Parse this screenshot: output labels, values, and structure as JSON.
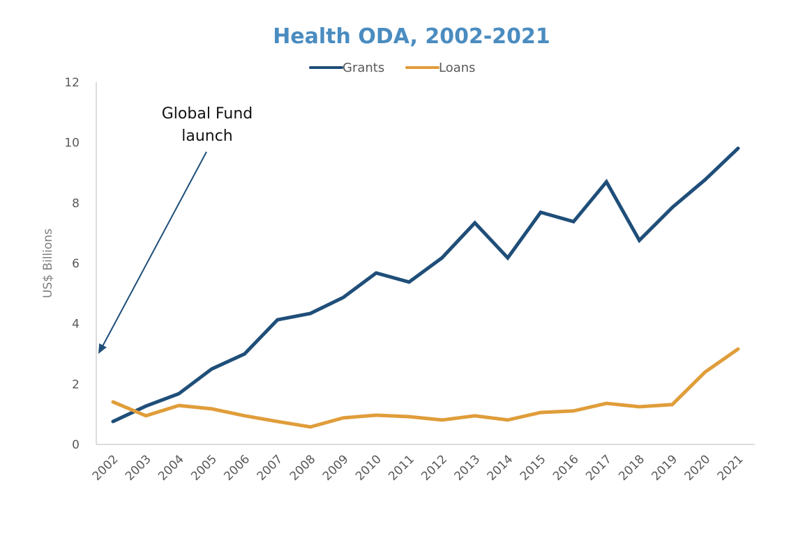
{
  "chart_data": {
    "type": "line",
    "title": "Health ODA, 2002-2021",
    "xlabel": "",
    "ylabel": "US$ Billions",
    "ylim": [
      0,
      12
    ],
    "yticks": [
      "0",
      "2",
      "4",
      "6",
      "8",
      "10",
      "12"
    ],
    "grid": false,
    "legend_position": "top-center",
    "categories": [
      "2002",
      "2003",
      "2004",
      "2005",
      "2006",
      "2007",
      "2008",
      "2009",
      "2010",
      "2011",
      "2012",
      "2013",
      "2014",
      "2015",
      "2016",
      "2017",
      "2018",
      "2019",
      "2020",
      "2021"
    ],
    "series": [
      {
        "name": "Grants",
        "color": "#1f4e79",
        "values": [
          0.76,
          1.27,
          1.68,
          2.5,
          3.0,
          4.13,
          4.34,
          4.87,
          5.68,
          5.38,
          6.18,
          7.34,
          6.18,
          7.69,
          7.38,
          8.7,
          6.76,
          7.85,
          8.77,
          9.81
        ]
      },
      {
        "name": "Loans",
        "color": "#e09d3a",
        "values": [
          1.41,
          0.95,
          1.29,
          1.18,
          0.95,
          0.76,
          0.58,
          0.88,
          0.97,
          0.92,
          0.81,
          0.95,
          0.81,
          1.06,
          1.11,
          1.36,
          1.25,
          1.32,
          2.4,
          3.16
        ]
      }
    ],
    "annotations": [
      {
        "text_lines": [
          "Global Fund",
          "launch"
        ],
        "arrow_target": {
          "x": "2002",
          "y": 3.0
        },
        "arrow_color": "#1f4e79"
      }
    ]
  }
}
